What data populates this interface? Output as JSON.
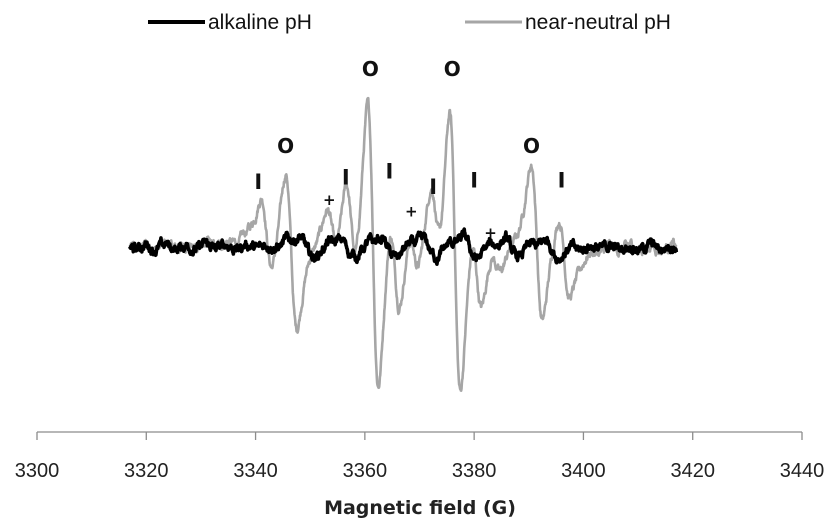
{
  "chart_data": {
    "type": "line",
    "xlabel": "Magnetic field (G)",
    "xlim": [
      3300,
      3440
    ],
    "xticks": [
      3300,
      3320,
      3340,
      3360,
      3380,
      3400,
      3420,
      3440
    ],
    "x_range": [
      3317,
      3417
    ],
    "y_axis": "none",
    "grid": false,
    "legend_position": "top",
    "series": [
      {
        "name": "alkaline pH",
        "color": "#000000",
        "style": "thick",
        "noise_amplitude": 0.05,
        "lines": [
          {
            "center": 3349.0,
            "amplitude": 0.14
          },
          {
            "center": 3356.5,
            "amplitude": 0.12
          },
          {
            "center": 3364.0,
            "amplitude": 0.14
          },
          {
            "center": 3371.5,
            "amplitude": 0.12
          },
          {
            "center": 3379.0,
            "amplitude": 0.14
          },
          {
            "center": 3386.5,
            "amplitude": 0.12
          },
          {
            "center": 3394.0,
            "amplitude": 0.1
          }
        ]
      },
      {
        "name": "near-neutral pH",
        "color": "#a6a6a6",
        "style": "normal",
        "noise_amplitude": 0.05,
        "lines": [
          {
            "center": 3342.0,
            "amplitude": 0.55,
            "marker": "I"
          },
          {
            "center": 3346.5,
            "amplitude": 1.05,
            "marker": "O"
          },
          {
            "center": 3354.0,
            "amplitude": 0.35,
            "marker": "+"
          },
          {
            "center": 3357.5,
            "amplitude": 0.7,
            "marker": "I"
          },
          {
            "center": 3361.5,
            "amplitude": 2.0,
            "marker": "O"
          },
          {
            "center": 3365.5,
            "amplitude": 0.72,
            "marker": "I"
          },
          {
            "center": 3369.0,
            "amplitude": 0.35,
            "marker": "+"
          },
          {
            "center": 3373.0,
            "amplitude": 0.62,
            "marker": "I"
          },
          {
            "center": 3376.5,
            "amplitude": 2.0,
            "marker": "O"
          },
          {
            "center": 3380.5,
            "amplitude": 0.62,
            "marker": "I"
          },
          {
            "center": 3384.0,
            "amplitude": 0.2,
            "marker": "+"
          },
          {
            "center": 3391.5,
            "amplitude": 1.05,
            "marker": "O"
          },
          {
            "center": 3396.5,
            "amplitude": 0.6,
            "marker": "I"
          }
        ]
      }
    ],
    "markers": [
      {
        "label": "I",
        "x": 3340.5,
        "y": 0.76
      },
      {
        "label": "O",
        "x": 3345.5,
        "y": 1.24
      },
      {
        "label": "+",
        "x": 3353.5,
        "y": 0.55
      },
      {
        "label": "I",
        "x": 3356.5,
        "y": 0.82
      },
      {
        "label": "O",
        "x": 3361.0,
        "y": 2.25
      },
      {
        "label": "I",
        "x": 3364.5,
        "y": 0.9
      },
      {
        "label": "+",
        "x": 3368.5,
        "y": 0.4
      },
      {
        "label": "I",
        "x": 3372.5,
        "y": 0.7
      },
      {
        "label": "O",
        "x": 3376.0,
        "y": 2.25
      },
      {
        "label": "I",
        "x": 3380.0,
        "y": 0.78
      },
      {
        "label": "+",
        "x": 3383.0,
        "y": 0.12
      },
      {
        "label": "O",
        "x": 3390.5,
        "y": 1.24
      },
      {
        "label": "I",
        "x": 3396.0,
        "y": 0.78
      }
    ]
  }
}
